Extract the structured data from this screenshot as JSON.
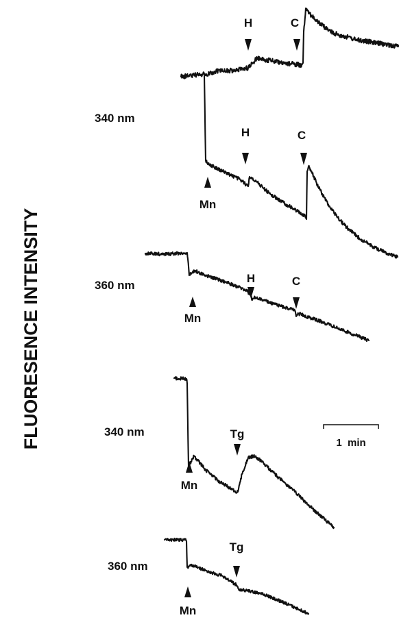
{
  "chart_data": {
    "type": "line",
    "ylabel": "FLUORESENCE INTENSITY",
    "xlabel": "",
    "grid": false,
    "legend": "none",
    "scale_bar_label": "1  min",
    "traces": [
      {
        "id": "top-340-trace-a",
        "wavelength": "",
        "markers": [
          {
            "label": "H",
            "pointer": "down"
          },
          {
            "label": "C",
            "pointer": "down"
          }
        ]
      },
      {
        "id": "top-340-trace-b",
        "wavelength": "340 nm",
        "markers": [
          {
            "label": "Mn",
            "pointer": "up"
          },
          {
            "label": "H",
            "pointer": "down"
          },
          {
            "label": "C",
            "pointer": "down"
          }
        ]
      },
      {
        "id": "top-360-trace",
        "wavelength": "360 nm",
        "markers": [
          {
            "label": "Mn",
            "pointer": "up"
          },
          {
            "label": "H",
            "pointer": "down"
          },
          {
            "label": "C",
            "pointer": "down"
          }
        ]
      },
      {
        "id": "bottom-340-trace",
        "wavelength": "340 nm",
        "markers": [
          {
            "label": "Mn",
            "pointer": "up"
          },
          {
            "label": "Tg",
            "pointer": "down"
          }
        ]
      },
      {
        "id": "bottom-360-trace",
        "wavelength": "360 nm",
        "markers": [
          {
            "label": "Mn",
            "pointer": "up"
          },
          {
            "label": "Tg",
            "pointer": "down"
          }
        ]
      }
    ]
  }
}
